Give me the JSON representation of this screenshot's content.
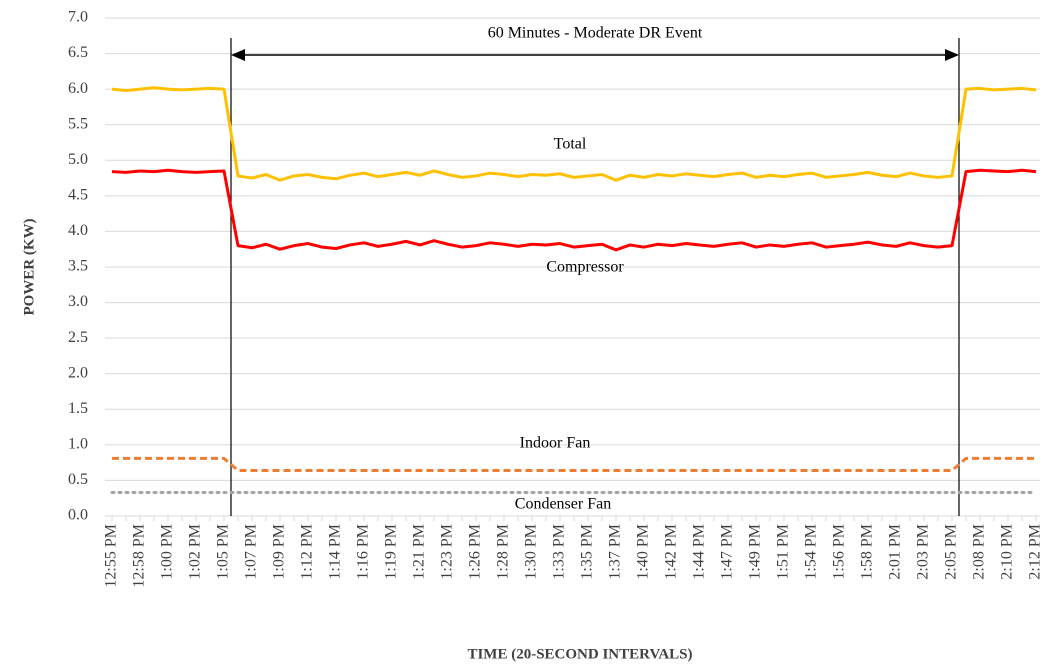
{
  "chart_data": {
    "type": "line",
    "ylabel": "POWER (KW)",
    "xlabel": "TIME (20-SECOND INTERVALS)",
    "annotation": "60 Minutes - Moderate DR Event",
    "categories": [
      "12:55 PM",
      null,
      "12:58 PM",
      null,
      "1:00 PM",
      null,
      "1:02 PM",
      null,
      "1:05 PM",
      null,
      "1:07 PM",
      null,
      "1:09 PM",
      null,
      "1:12 PM",
      null,
      "1:14 PM",
      null,
      "1:16 PM",
      null,
      "1:19 PM",
      null,
      "1:21 PM",
      null,
      "1:23 PM",
      null,
      "1:26 PM",
      null,
      "1:28 PM",
      null,
      "1:30 PM",
      null,
      "1:33 PM",
      null,
      "1:35 PM",
      null,
      "1:37 PM",
      null,
      "1:40 PM",
      null,
      "1:42 PM",
      null,
      "1:44 PM",
      null,
      "1:47 PM",
      null,
      "1:49 PM",
      null,
      "1:51 PM",
      null,
      "1:54 PM",
      null,
      "1:56 PM",
      null,
      "1:58 PM",
      null,
      "2:01 PM",
      null,
      "2:03 PM",
      null,
      "2:05 PM",
      null,
      "2:08 PM",
      null,
      "2:10 PM",
      null,
      "2:12 PM"
    ],
    "series": [
      {
        "name": "Total",
        "color": "#ffc000",
        "dash": "solid",
        "values": [
          6.0,
          5.98,
          6.0,
          6.02,
          6.0,
          5.99,
          6.0,
          6.01,
          6.0,
          4.78,
          4.75,
          4.8,
          4.72,
          4.78,
          4.8,
          4.76,
          4.74,
          4.79,
          4.82,
          4.77,
          4.8,
          4.83,
          4.79,
          4.85,
          4.8,
          4.76,
          4.78,
          4.82,
          4.8,
          4.77,
          4.8,
          4.79,
          4.81,
          4.76,
          4.78,
          4.8,
          4.72,
          4.79,
          4.76,
          4.8,
          4.78,
          4.81,
          4.79,
          4.77,
          4.8,
          4.82,
          4.76,
          4.79,
          4.77,
          4.8,
          4.82,
          4.76,
          4.78,
          4.8,
          4.83,
          4.79,
          4.77,
          4.82,
          4.78,
          4.76,
          4.78,
          6.0,
          6.01,
          5.99,
          6.0,
          6.01,
          5.99
        ]
      },
      {
        "name": "Compressor",
        "color": "#ff0000",
        "dash": "solid",
        "values": [
          4.84,
          4.83,
          4.85,
          4.84,
          4.86,
          4.84,
          4.83,
          4.84,
          4.85,
          3.8,
          3.77,
          3.82,
          3.75,
          3.8,
          3.83,
          3.78,
          3.76,
          3.81,
          3.84,
          3.79,
          3.82,
          3.86,
          3.81,
          3.87,
          3.82,
          3.78,
          3.8,
          3.84,
          3.82,
          3.79,
          3.82,
          3.81,
          3.83,
          3.78,
          3.8,
          3.82,
          3.74,
          3.81,
          3.78,
          3.82,
          3.8,
          3.83,
          3.81,
          3.79,
          3.82,
          3.84,
          3.78,
          3.81,
          3.79,
          3.82,
          3.84,
          3.78,
          3.8,
          3.82,
          3.85,
          3.81,
          3.79,
          3.84,
          3.8,
          3.78,
          3.8,
          4.84,
          4.86,
          4.85,
          4.84,
          4.86,
          4.84
        ]
      },
      {
        "name": "Indoor Fan",
        "color": "#ed7d31",
        "dash": "dashed",
        "values": [
          0.81,
          0.81,
          0.81,
          0.81,
          0.81,
          0.81,
          0.81,
          0.81,
          0.81,
          0.64,
          0.64,
          0.64,
          0.64,
          0.64,
          0.64,
          0.64,
          0.64,
          0.64,
          0.64,
          0.64,
          0.64,
          0.64,
          0.64,
          0.64,
          0.64,
          0.64,
          0.64,
          0.64,
          0.64,
          0.64,
          0.64,
          0.64,
          0.64,
          0.64,
          0.64,
          0.64,
          0.64,
          0.64,
          0.64,
          0.64,
          0.64,
          0.64,
          0.64,
          0.64,
          0.64,
          0.64,
          0.64,
          0.64,
          0.64,
          0.64,
          0.64,
          0.64,
          0.64,
          0.64,
          0.64,
          0.64,
          0.64,
          0.64,
          0.64,
          0.64,
          0.64,
          0.81,
          0.81,
          0.81,
          0.81,
          0.81,
          0.81
        ]
      },
      {
        "name": "Condenser Fan",
        "color": "#a5a5a5",
        "dash": "dotted",
        "values": [
          0.33,
          0.33,
          0.33,
          0.33,
          0.33,
          0.33,
          0.33,
          0.33,
          0.33,
          0.33,
          0.33,
          0.33,
          0.33,
          0.33,
          0.33,
          0.33,
          0.33,
          0.33,
          0.33,
          0.33,
          0.33,
          0.33,
          0.33,
          0.33,
          0.33,
          0.33,
          0.33,
          0.33,
          0.33,
          0.33,
          0.33,
          0.33,
          0.33,
          0.33,
          0.33,
          0.33,
          0.33,
          0.33,
          0.33,
          0.33,
          0.33,
          0.33,
          0.33,
          0.33,
          0.33,
          0.33,
          0.33,
          0.33,
          0.33,
          0.33,
          0.33,
          0.33,
          0.33,
          0.33,
          0.33,
          0.33,
          0.33,
          0.33,
          0.33,
          0.33,
          0.33,
          0.33,
          0.33,
          0.33,
          0.33,
          0.33,
          0.33
        ]
      }
    ],
    "ylim": [
      0,
      7
    ],
    "yticks": [
      {
        "value": 0,
        "label": "0.0"
      },
      0.5,
      {
        "value": 1,
        "label": "1.0"
      },
      1.5,
      {
        "value": 2,
        "label": "2.0"
      },
      2.5,
      {
        "value": 3,
        "label": "3.0"
      },
      3.5,
      {
        "value": 4,
        "label": "4.0"
      },
      4.5,
      {
        "value": 5,
        "label": "5.0"
      },
      5.5,
      {
        "value": 6,
        "label": "6.0"
      },
      6.5,
      {
        "value": 7,
        "label": "7.0"
      }
    ],
    "grid": true
  }
}
